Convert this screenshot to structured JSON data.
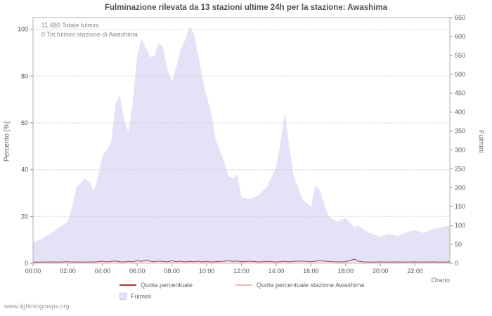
{
  "page": {
    "watermark": "www.lightningmaps.org"
  },
  "chart_data": {
    "type": "area",
    "title": "Fulminazione rilevata da 13 stazioni ultime 24h per la stazione: Awashima",
    "annotations": {
      "total": "11.680 Totale fulmini",
      "station": "0 Tot.fulmini stazione di Awashima"
    },
    "x_axis": {
      "label": "Orario",
      "tick_hours": [
        0,
        2,
        4,
        6,
        8,
        10,
        12,
        14,
        16,
        18,
        20,
        22
      ],
      "tick_labels": [
        "00:00",
        "02:00",
        "04:00",
        "06:00",
        "08:00",
        "10:00",
        "12:00",
        "14:00",
        "16:00",
        "18:00",
        "20:00",
        "22:00"
      ],
      "range_hours": [
        0,
        24
      ]
    },
    "left_axis": {
      "label": "Percento  [%]",
      "ticks": [
        0,
        20,
        40,
        60,
        80,
        100
      ],
      "range": [
        0,
        100
      ]
    },
    "right_axis": {
      "label": "Fulmini",
      "ticks": [
        0,
        50,
        100,
        150,
        200,
        250,
        300,
        350,
        400,
        450,
        500,
        550,
        600,
        650
      ],
      "range": [
        0,
        650
      ]
    },
    "x_hours": [
      0.0,
      0.5,
      1.0,
      1.5,
      2.0,
      2.25,
      2.5,
      3.0,
      3.25,
      3.5,
      3.75,
      4.0,
      4.25,
      4.5,
      4.75,
      5.0,
      5.25,
      5.5,
      5.75,
      6.0,
      6.25,
      6.5,
      6.75,
      7.0,
      7.25,
      7.5,
      7.75,
      8.0,
      8.25,
      8.5,
      8.75,
      9.0,
      9.25,
      9.5,
      9.75,
      10.0,
      10.25,
      10.5,
      11.0,
      11.25,
      11.5,
      11.75,
      12.0,
      12.5,
      13.0,
      13.5,
      14.0,
      14.25,
      14.5,
      14.75,
      15.0,
      15.5,
      16.0,
      16.25,
      16.5,
      17.0,
      17.5,
      18.0,
      18.5,
      18.75,
      19.0,
      19.5,
      20.0,
      20.5,
      21.0,
      21.5,
      22.0,
      22.5,
      23.0,
      23.5,
      24.0
    ],
    "series": [
      {
        "name": "Fulmini",
        "kind": "area",
        "axis": "right",
        "color": "#e4e2f7",
        "values": [
          55,
          65,
          78,
          95,
          110,
          150,
          200,
          225,
          215,
          190,
          230,
          285,
          300,
          320,
          420,
          445,
          380,
          345,
          430,
          550,
          595,
          570,
          545,
          550,
          585,
          570,
          510,
          480,
          520,
          565,
          590,
          625,
          610,
          555,
          490,
          440,
          400,
          330,
          270,
          230,
          225,
          235,
          175,
          170,
          180,
          205,
          255,
          320,
          400,
          310,
          235,
          170,
          150,
          205,
          195,
          125,
          110,
          120,
          95,
          100,
          90,
          78,
          70,
          78,
          72,
          82,
          88,
          80,
          90,
          95,
          100
        ]
      },
      {
        "name": "Quota percentuale",
        "kind": "line",
        "axis": "left",
        "color": "#a03a35",
        "values": [
          0.5,
          0.5,
          0.6,
          0.5,
          0.7,
          0.5,
          0.6,
          0.5,
          0.6,
          0.5,
          0.7,
          0.9,
          0.6,
          0.8,
          1.0,
          0.7,
          0.6,
          0.8,
          0.6,
          1.2,
          0.8,
          1.4,
          0.9,
          0.7,
          1.0,
          0.8,
          0.6,
          1.1,
          0.7,
          0.9,
          0.6,
          0.8,
          0.7,
          0.9,
          0.6,
          0.8,
          0.6,
          0.7,
          0.9,
          1.1,
          0.8,
          1.0,
          0.7,
          0.9,
          0.6,
          0.8,
          0.6,
          0.7,
          0.9,
          0.6,
          0.8,
          1.0,
          0.7,
          0.9,
          1.1,
          0.8,
          0.6,
          0.7,
          1.8,
          0.9,
          0.6,
          0.5,
          0.6,
          0.5,
          0.6,
          0.5,
          0.6,
          0.5,
          0.6,
          0.5,
          0.6
        ]
      },
      {
        "name": "Quota percentuale stazione Awashima",
        "kind": "line",
        "axis": "left",
        "color": "#e9b9b0",
        "values": 0
      }
    ],
    "grid_color": "#cccccc",
    "frame_color": "#b0b0b0",
    "tick_color": "#8f8f8f",
    "tick_text_color": "#555555",
    "legend_position": "bottom",
    "grid": true
  }
}
